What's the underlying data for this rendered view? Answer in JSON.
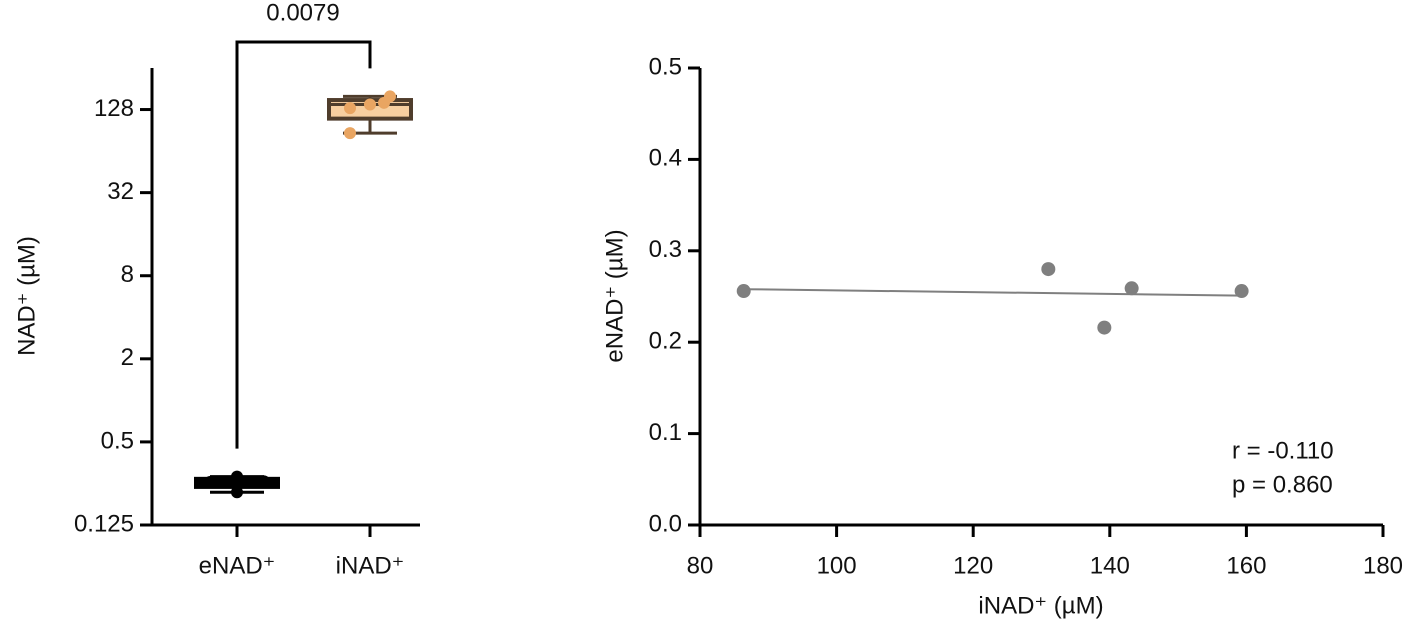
{
  "chart_data": [
    {
      "type": "box",
      "ylabel": "NAD⁺ (µM)",
      "categories": [
        "eNAD⁺",
        "iNAD⁺"
      ],
      "ylog": true,
      "ylim": [
        0.125,
        256
      ],
      "yticks": [
        0.125,
        0.5,
        2,
        8,
        32,
        128
      ],
      "annotation": "0.0079",
      "boxes": [
        {
          "min": 0.216,
          "q1": 0.236,
          "median": 0.256,
          "q3": 0.27,
          "max": 0.28,
          "points": [
            0.256,
            0.28,
            0.259,
            0.216,
            0.256
          ],
          "color": "#000000",
          "fill": "#000000",
          "point_color": "#000000"
        },
        {
          "min": 86.4,
          "q1": 110,
          "median": 139.2,
          "q3": 150,
          "max": 159.3,
          "points": [
            86.4,
            131,
            139.2,
            143.2,
            159.3
          ],
          "color": "#4f3d2c",
          "fill": "#f7cfa0",
          "point_color": "#e9a562"
        }
      ]
    },
    {
      "type": "scatter",
      "xlabel": "iNAD⁺ (µM)",
      "ylabel": "eNAD⁺ (µM)",
      "x": [
        86.4,
        131,
        139.2,
        143.2,
        159.3
      ],
      "values": [
        0.256,
        0.28,
        0.216,
        0.259,
        0.256
      ],
      "color": "#7f7f7f",
      "xlim": [
        80,
        180
      ],
      "xticks": [
        80,
        100,
        120,
        140,
        160,
        180
      ],
      "ylim": [
        0,
        0.5
      ],
      "yticks": [
        {
          "value": 0,
          "label": "0.0"
        },
        0.1,
        0.2,
        0.3,
        0.4,
        0.5
      ],
      "fit": {
        "x": [
          86.4,
          159.3
        ],
        "y": [
          0.258,
          0.251
        ]
      },
      "annotations": [
        "r = -0.110",
        "p = 0.860"
      ]
    }
  ]
}
